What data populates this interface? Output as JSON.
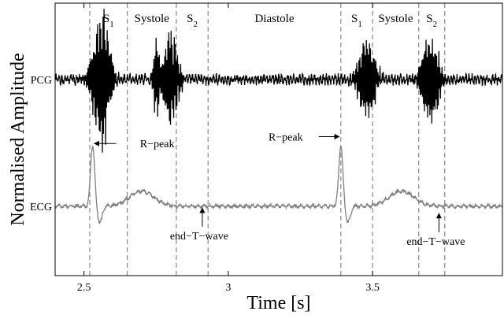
{
  "chart_data": {
    "type": "line",
    "xlabel": "Time [s]",
    "ylabel": "Normalised Amplitude",
    "xlim": [
      2.4,
      3.95
    ],
    "ylim": [
      0,
      1
    ],
    "xticks": [
      2.5,
      3,
      3.5
    ],
    "xtick_labels": [
      "2.5",
      "3",
      "3.5"
    ],
    "grid": false,
    "series": [
      {
        "name": "PCG",
        "label": "PCG",
        "color": "#000000",
        "baseline": 0.72,
        "noise_amplitude": 0.018,
        "bursts": [
          {
            "t": 2.56,
            "width": 0.035,
            "amplitude": 0.26
          },
          {
            "t": 2.75,
            "width": 0.012,
            "amplitude": 0.14
          },
          {
            "t": 2.8,
            "width": 0.03,
            "amplitude": 0.18
          },
          {
            "t": 3.48,
            "width": 0.035,
            "amplitude": 0.15
          },
          {
            "t": 3.7,
            "width": 0.035,
            "amplitude": 0.18
          }
        ]
      },
      {
        "name": "ECG",
        "label": "ECG",
        "color": "#808080",
        "baseline": 0.255,
        "r_peaks": [
          2.53,
          3.39
        ],
        "r_peak_value": 0.48,
        "t_waves": [
          2.7,
          3.6
        ]
      }
    ],
    "segment_boundaries": [
      2.52,
      2.65,
      2.82,
      2.93,
      3.39,
      3.5,
      3.66,
      3.75
    ],
    "segment_labels": [
      {
        "text": "S",
        "sub": "1",
        "x": 2.585
      },
      {
        "text": "Systole",
        "sub": "",
        "x": 2.735
      },
      {
        "text": "S",
        "sub": "2",
        "x": 2.875
      },
      {
        "text": "Diastole",
        "sub": "",
        "x": 3.16
      },
      {
        "text": "S",
        "sub": "1",
        "x": 3.445
      },
      {
        "text": "Systole",
        "sub": "",
        "x": 3.58
      },
      {
        "text": "S",
        "sub": "2",
        "x": 3.705
      }
    ],
    "annotations": [
      {
        "text": "R−peak",
        "target_x": 2.53,
        "target_y": 0.485,
        "anchor": "right"
      },
      {
        "text": "R−peak",
        "target_x": 3.39,
        "target_y": 0.51,
        "anchor": "left"
      },
      {
        "text": "end−T−wave",
        "target_x": 2.91,
        "target_y": 0.26,
        "anchor": "below"
      },
      {
        "text": "end−T−wave",
        "target_x": 3.73,
        "target_y": 0.24,
        "anchor": "below"
      }
    ]
  }
}
